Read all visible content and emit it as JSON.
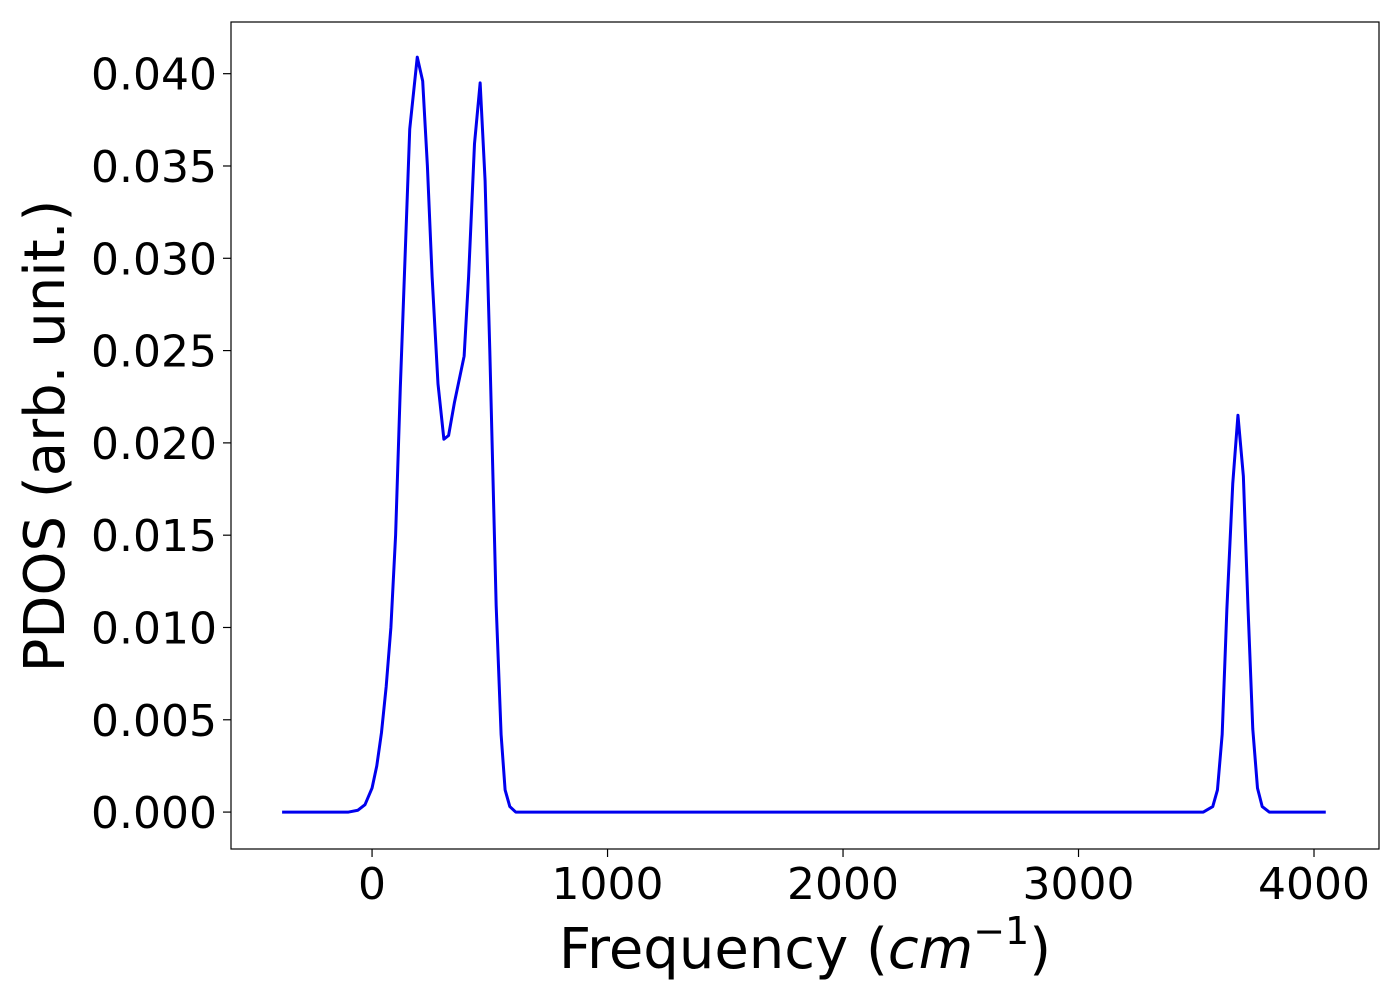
{
  "chart_data": {
    "type": "line",
    "xlabel": {
      "text": "Frequency (",
      "unit": "cm",
      "exponent": "−1",
      "close": ")"
    },
    "ylabel": "PDOS (arb. unit.)",
    "xlim": [
      -599,
      4276
    ],
    "ylim": [
      -0.002,
      0.0428
    ],
    "xticks": [
      0,
      1000,
      2000,
      3000,
      4000
    ],
    "yticks": [
      {
        "value": 0,
        "label": "0.000"
      },
      {
        "value": 0.005,
        "label": "0.005"
      },
      {
        "value": 0.01,
        "label": "0.010"
      },
      {
        "value": 0.015,
        "label": "0.015"
      },
      {
        "value": 0.02,
        "label": "0.020"
      },
      {
        "value": 0.025,
        "label": "0.025"
      },
      {
        "value": 0.03,
        "label": "0.030"
      },
      {
        "value": 0.035,
        "label": "0.035"
      },
      {
        "value": 0.04,
        "label": "0.040"
      }
    ],
    "x": [
      -382,
      -100,
      -60,
      -30,
      0,
      20,
      40,
      60,
      80,
      100,
      120,
      140,
      160,
      192,
      215,
      235,
      255,
      280,
      305,
      325,
      350,
      391,
      410,
      435,
      459,
      480,
      500,
      527,
      548,
      565,
      585,
      610,
      3530,
      3570,
      3590,
      3610,
      3630,
      3655,
      3677,
      3700,
      3720,
      3740,
      3760,
      3780,
      3810,
      4050
    ],
    "series": [
      {
        "color": "#0000ee",
        "values": [
          0,
          0,
          0.0001,
          0.0004,
          0.0013,
          0.0025,
          0.0043,
          0.0068,
          0.01,
          0.015,
          0.023,
          0.03,
          0.037,
          0.0409,
          0.0396,
          0.035,
          0.029,
          0.0232,
          0.0202,
          0.0204,
          0.0222,
          0.0247,
          0.029,
          0.0362,
          0.0395,
          0.0342,
          0.025,
          0.0112,
          0.0042,
          0.0012,
          0.0003,
          0,
          0,
          0.0003,
          0.0012,
          0.0042,
          0.011,
          0.0178,
          0.0215,
          0.0182,
          0.011,
          0.0045,
          0.0013,
          0.0003,
          0,
          0
        ]
      }
    ]
  }
}
